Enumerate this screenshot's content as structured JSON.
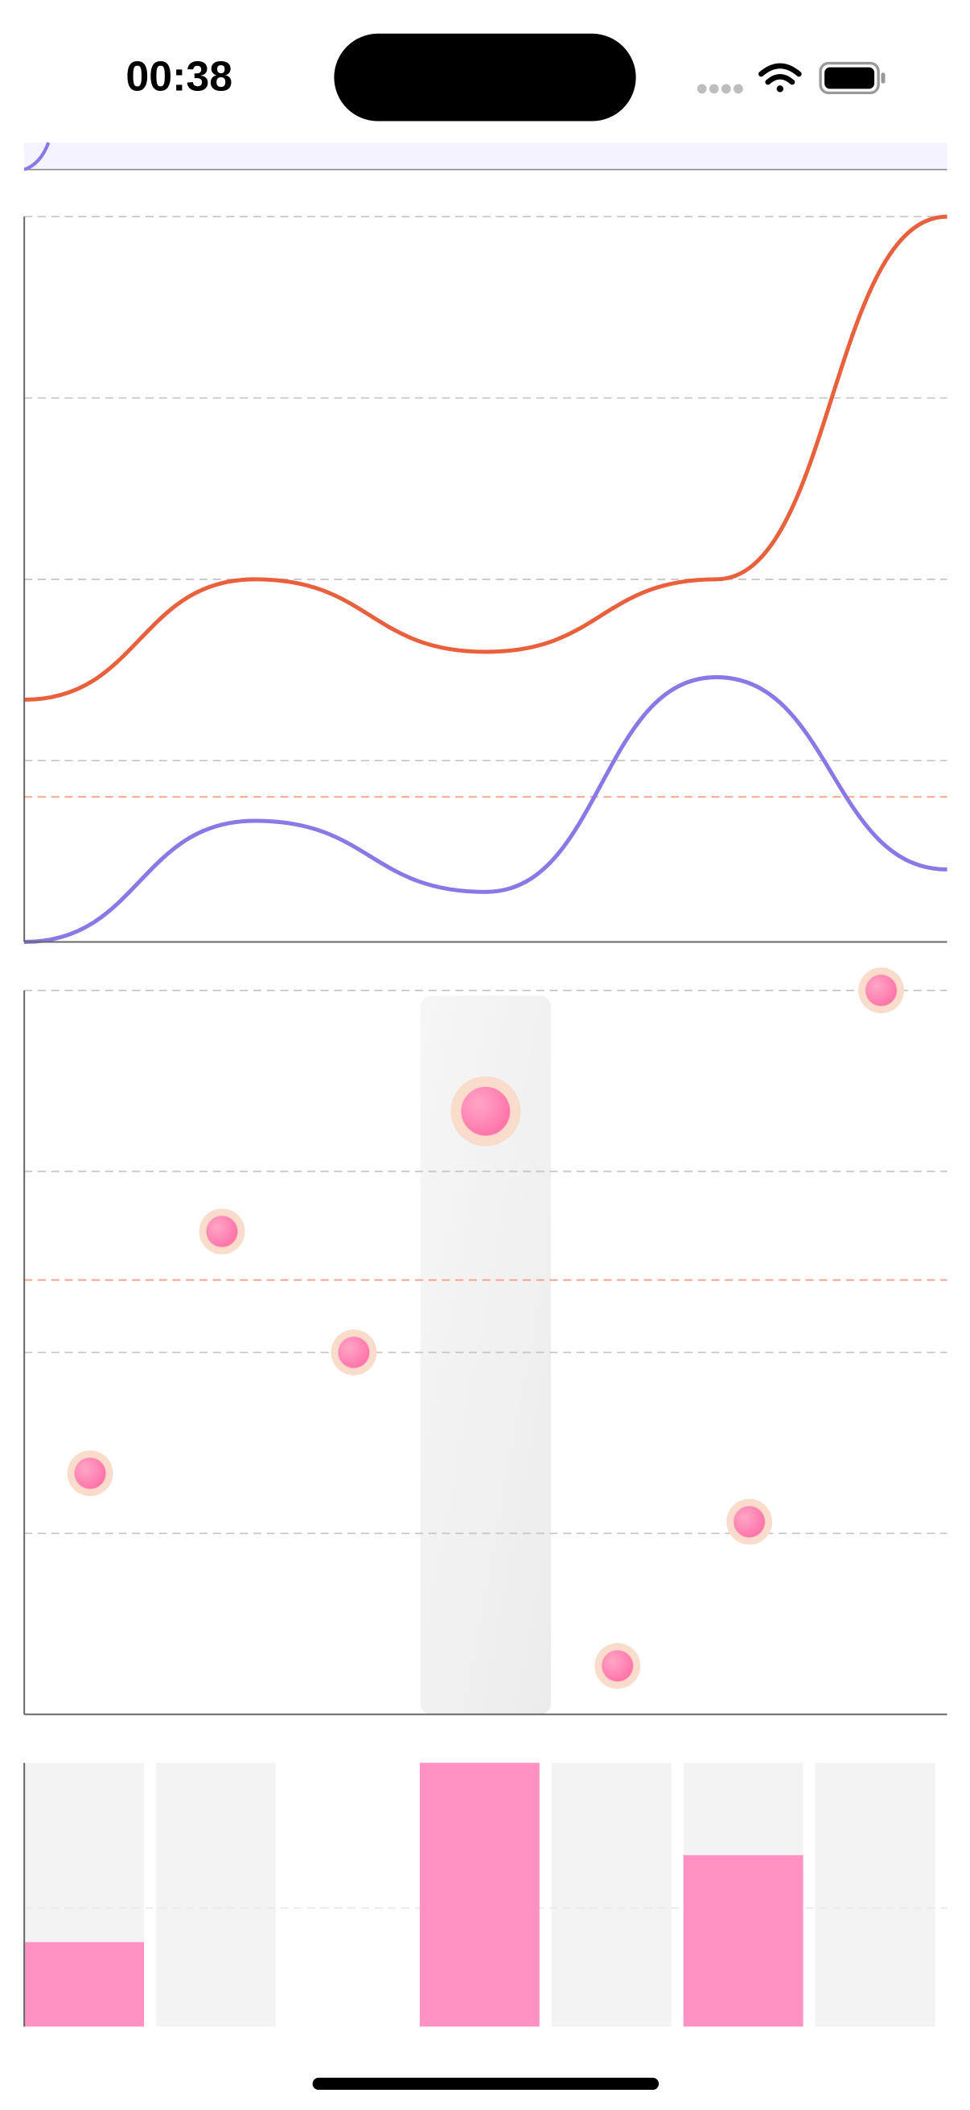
{
  "status_bar": {
    "time": "00:38"
  },
  "chart_data": [
    {
      "type": "line",
      "x": [
        0,
        1,
        2,
        3,
        4
      ],
      "xlim": [
        0,
        4
      ],
      "ylim": [
        0,
        100
      ],
      "yticks": [
        0,
        25,
        50,
        75,
        100
      ],
      "grid": true,
      "reference": 20,
      "reference_color": "#f9a58c",
      "series": [
        {
          "color": "#e8603c",
          "values": [
            33.4,
            50,
            40,
            50,
            100
          ]
        },
        {
          "color": "#8b78e6",
          "values": [
            0,
            16.7,
            6.9,
            36.5,
            10
          ]
        }
      ]
    },
    {
      "type": "scatter",
      "x": [
        0,
        1,
        2,
        3,
        4,
        5,
        6
      ],
      "xlim": [
        -0.5,
        6.5
      ],
      "ylim": [
        0,
        100
      ],
      "yticks": [
        0,
        25,
        50,
        75,
        100
      ],
      "grid": true,
      "reference": 60,
      "reference_color": "#f9a58c",
      "highlight_index": 3,
      "color": "#ff7fb0",
      "values": [
        33.3,
        66.7,
        50,
        83.3,
        6.7,
        26.6,
        100
      ]
    },
    {
      "type": "bar",
      "ylim": [
        0,
        100
      ],
      "reference": 45,
      "reference_color": "#ececec",
      "color": "#ff92c2",
      "values": [
        32,
        0,
        null,
        100,
        0,
        65,
        0
      ]
    }
  ]
}
